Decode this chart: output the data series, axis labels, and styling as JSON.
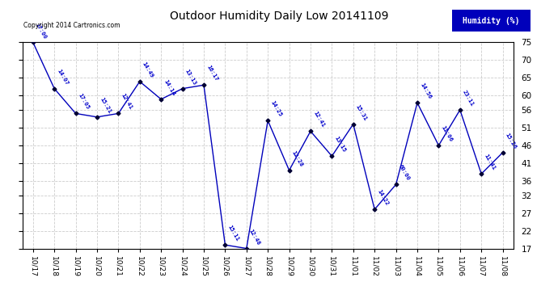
{
  "title": "Outdoor Humidity Daily Low 20141109",
  "copyright": "Copyright 2014 Cartronics.com",
  "legend_label": "Humidity (%)",
  "ylim": [
    17,
    75
  ],
  "yticks": [
    17,
    22,
    27,
    32,
    36,
    41,
    46,
    51,
    56,
    60,
    65,
    70,
    75
  ],
  "categories": [
    "10/17",
    "10/18",
    "10/19",
    "10/20",
    "10/21",
    "10/22",
    "10/23",
    "10/24",
    "10/25",
    "10/26",
    "10/27",
    "10/28",
    "10/29",
    "10/30",
    "10/31",
    "11/01",
    "11/02",
    "11/03",
    "11/04",
    "11/05",
    "11/06",
    "11/07",
    "11/08"
  ],
  "values": [
    75,
    62,
    55,
    54,
    55,
    64,
    59,
    62,
    63,
    18,
    17,
    53,
    39,
    50,
    43,
    52,
    28,
    35,
    58,
    46,
    56,
    38,
    44
  ],
  "time_labels": [
    "17:00",
    "14:07",
    "17:05",
    "15:21",
    "12:41",
    "14:49",
    "14:14",
    "13:13",
    "16:17",
    "15:11",
    "12:48",
    "14:25",
    "12:28",
    "12:41",
    "13:15",
    "15:31",
    "14:22",
    "60:00",
    "14:56",
    "11:06",
    "23:11",
    "11:41",
    "15:26"
  ],
  "line_color": "#0000bb",
  "marker_color": "#000033",
  "bg_color": "#ffffff",
  "grid_color": "#cccccc",
  "title_color": "#000000",
  "label_color": "#0000cc",
  "legend_bg": "#0000bb",
  "legend_fg": "#ffffff"
}
